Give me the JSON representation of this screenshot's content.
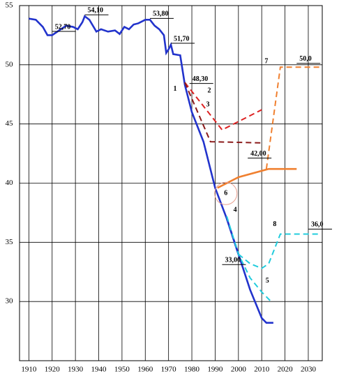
{
  "chart_data": {
    "type": "line",
    "xlim": [
      1906,
      2036
    ],
    "ylim": [
      25,
      55
    ],
    "xticks": [
      1910,
      1920,
      1930,
      1940,
      1950,
      1960,
      1970,
      1980,
      1990,
      2000,
      2010,
      2020,
      2030
    ],
    "yticks": [
      30,
      35,
      40,
      45,
      50,
      55
    ],
    "grid": true,
    "series": [
      {
        "name": "1",
        "color": "#2233cc",
        "dash": false,
        "x": [
          1910,
          1913,
          1916,
          1918,
          1920,
          1923,
          1926,
          1929,
          1931,
          1933,
          1934,
          1936,
          1939,
          1941,
          1944,
          1947,
          1949,
          1951,
          1953,
          1955,
          1957,
          1960,
          1962,
          1964,
          1966,
          1968,
          1969,
          1970,
          1971,
          1972,
          1975,
          1977,
          1980,
          1985,
          1990,
          1995,
          2000,
          2005,
          2010,
          2012,
          2015
        ],
        "values": [
          53.9,
          53.8,
          53.2,
          52.5,
          52.5,
          52.9,
          53.3,
          53.2,
          53.0,
          53.6,
          54.1,
          53.8,
          52.8,
          53.0,
          52.8,
          52.9,
          52.6,
          53.2,
          53.0,
          53.4,
          53.5,
          53.8,
          53.8,
          53.3,
          53.0,
          52.5,
          51.0,
          51.3,
          51.7,
          50.9,
          50.8,
          48.3,
          46.0,
          43.5,
          39.6,
          37.0,
          34.0,
          31.0,
          28.6,
          28.2,
          28.2
        ]
      },
      {
        "name": "2",
        "color": "#dd2222",
        "dash": true,
        "x": [
          1977,
          1993,
          2010
        ],
        "values": [
          48.5,
          44.5,
          46.2
        ]
      },
      {
        "name": "3",
        "color": "#8b1a1a",
        "dash": true,
        "x": [
          1977,
          1988,
          2010
        ],
        "values": [
          48.5,
          43.5,
          43.4
        ]
      },
      {
        "name": "4",
        "color": "#2233cc",
        "dash": false,
        "x": [
          1995,
          2000
        ],
        "values": [
          37.0,
          34.0
        ]
      },
      {
        "name": "5",
        "color": "#22ccdd",
        "dash": true,
        "x": [
          1995,
          2000,
          2005,
          2010,
          2014
        ],
        "values": [
          37.2,
          34.0,
          32.0,
          30.8,
          30.0
        ]
      },
      {
        "name": "6",
        "color": "#f08030",
        "dash": false,
        "x": [
          1991,
          2000,
          2013,
          2025
        ],
        "values": [
          39.6,
          40.5,
          41.2,
          41.2
        ]
      },
      {
        "name": "7",
        "color": "#f08030",
        "dash": true,
        "x": [
          2012,
          2018,
          2035
        ],
        "values": [
          41.2,
          49.8,
          49.8
        ]
      },
      {
        "name": "8",
        "color": "#22ccdd",
        "dash": true,
        "x": [
          2000,
          2005,
          2010,
          2013,
          2018,
          2035
        ],
        "values": [
          34.0,
          33.2,
          32.8,
          33.2,
          35.7,
          35.7
        ]
      }
    ],
    "annotations": [
      {
        "text": "52,70",
        "x": 1920,
        "y": 52.7
      },
      {
        "text": "54,10",
        "x": 1934,
        "y": 54.1
      },
      {
        "text": "53,80",
        "x": 1962,
        "y": 53.8
      },
      {
        "text": "51,70",
        "x": 1971,
        "y": 51.7
      },
      {
        "text": "48,30",
        "x": 1979,
        "y": 48.3
      },
      {
        "text": "42,00",
        "x": 2004,
        "y": 42.0
      },
      {
        "text": "50,0",
        "x": 2025,
        "y": 50.0
      },
      {
        "text": "36,0",
        "x": 2030,
        "y": 36.0
      },
      {
        "text": "33,00",
        "x": 1993,
        "y": 33.0
      }
    ]
  }
}
